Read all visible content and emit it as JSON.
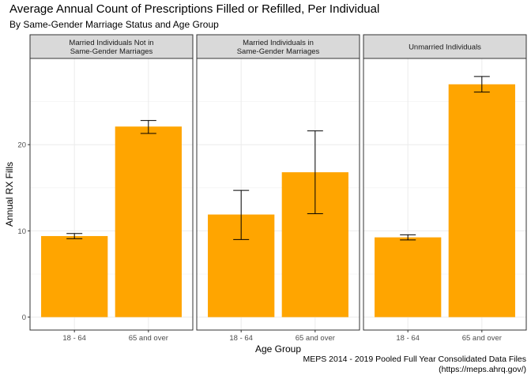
{
  "chart_data": {
    "type": "bar",
    "title": "Average Annual Count of Prescriptions Filled or Refilled, Per Individual",
    "subtitle": "By Same-Gender Marriage Status and Age Group",
    "xlabel": "Age Group",
    "ylabel": "Annual RX Fills",
    "ylim": [
      -1.5,
      30
    ],
    "yticks": [
      0,
      10,
      20
    ],
    "grid": true,
    "legend": "none",
    "caption": [
      "MEPS 2014 - 2019 Pooled Full Year Consolidated Data Files",
      "(https://meps.ahrq.gov/)"
    ],
    "bar_color": "#FFA500",
    "categories": [
      "18 - 64",
      "65 and over"
    ],
    "facets": [
      {
        "label": [
          "Married Individuals Not in",
          "Same-Gender Marriages"
        ],
        "values": [
          9.4,
          22.1
        ],
        "error_low": [
          9.1,
          21.3
        ],
        "error_high": [
          9.7,
          22.8
        ]
      },
      {
        "label": [
          "Married Individuals in",
          "Same-Gender Marriages"
        ],
        "values": [
          11.9,
          16.8
        ],
        "error_low": [
          9.0,
          12.0
        ],
        "error_high": [
          14.7,
          21.6
        ]
      },
      {
        "label": [
          "Unmarried Individuals"
        ],
        "values": [
          9.25,
          27.0
        ],
        "error_low": [
          8.95,
          26.1
        ],
        "error_high": [
          9.55,
          27.9
        ]
      }
    ]
  }
}
